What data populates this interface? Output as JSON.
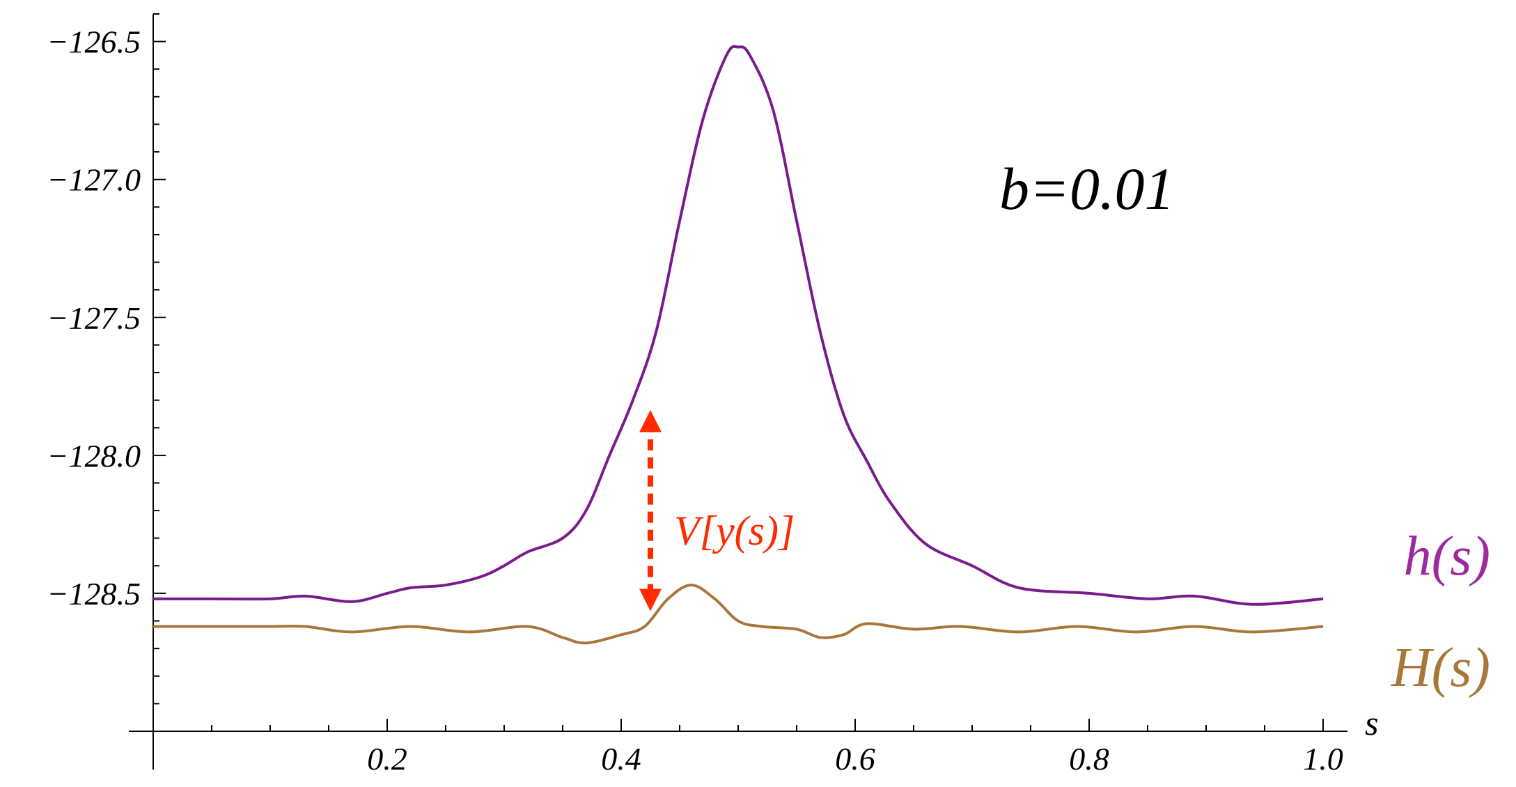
{
  "chart_data": {
    "type": "line",
    "annotation": "b=0.01",
    "xlabel": "s",
    "ylabel": "",
    "xlim": [
      0.0,
      1.0
    ],
    "ylim": [
      -129.0,
      -126.4
    ],
    "x_ticks": [
      0.2,
      0.4,
      0.6,
      0.8,
      1.0
    ],
    "x_tick_labels": [
      "0.2",
      "0.4",
      "0.6",
      "0.8",
      "1.0"
    ],
    "y_ticks": [
      -126.5,
      -127.0,
      -127.5,
      -128.0,
      -128.5
    ],
    "y_tick_labels": [
      "−126.5",
      "−127.0",
      "−127.5",
      "−128.0",
      "−128.5"
    ],
    "grid": false,
    "series": [
      {
        "name": "h(s)",
        "color": "#7a1a8e",
        "x": [
          0.0,
          0.05,
          0.1,
          0.13,
          0.17,
          0.2,
          0.22,
          0.25,
          0.28,
          0.3,
          0.32,
          0.35,
          0.37,
          0.39,
          0.41,
          0.43,
          0.45,
          0.47,
          0.49,
          0.5,
          0.51,
          0.53,
          0.55,
          0.57,
          0.59,
          0.61,
          0.63,
          0.66,
          0.7,
          0.74,
          0.8,
          0.85,
          0.89,
          0.94,
          1.0
        ],
        "y": [
          -128.52,
          -128.52,
          -128.52,
          -128.51,
          -128.53,
          -128.5,
          -128.48,
          -128.47,
          -128.44,
          -128.4,
          -128.35,
          -128.3,
          -128.2,
          -128.0,
          -127.8,
          -127.55,
          -127.15,
          -126.78,
          -126.55,
          -126.52,
          -126.55,
          -126.75,
          -127.15,
          -127.55,
          -127.85,
          -128.02,
          -128.17,
          -128.32,
          -128.4,
          -128.48,
          -128.5,
          -128.52,
          -128.51,
          -128.54,
          -128.52
        ]
      },
      {
        "name": "H(s)",
        "color": "#a8773a",
        "x": [
          0.0,
          0.05,
          0.1,
          0.13,
          0.17,
          0.22,
          0.27,
          0.32,
          0.35,
          0.37,
          0.4,
          0.42,
          0.44,
          0.46,
          0.48,
          0.5,
          0.52,
          0.55,
          0.57,
          0.59,
          0.61,
          0.65,
          0.69,
          0.74,
          0.79,
          0.84,
          0.89,
          0.94,
          1.0
        ],
        "y": [
          -128.62,
          -128.62,
          -128.62,
          -128.62,
          -128.64,
          -128.62,
          -128.64,
          -128.62,
          -128.66,
          -128.68,
          -128.65,
          -128.62,
          -128.52,
          -128.47,
          -128.52,
          -128.6,
          -128.62,
          -128.63,
          -128.66,
          -128.65,
          -128.61,
          -128.63,
          -128.62,
          -128.64,
          -128.62,
          -128.64,
          -128.62,
          -128.64,
          -128.62
        ]
      }
    ],
    "series_labels": [
      "h(s)",
      "H(s)"
    ],
    "arrow": {
      "label": "V[y(s)]",
      "color": "#ff2a00",
      "x": 0.425,
      "y_from": -128.6,
      "y_to": -127.8
    }
  }
}
